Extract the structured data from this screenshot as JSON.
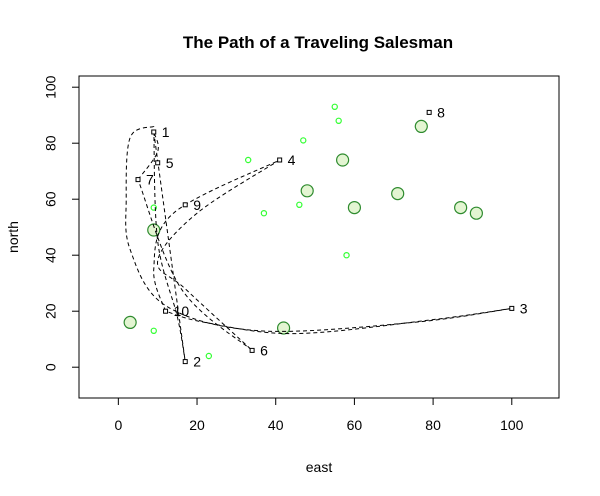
{
  "chart_data": {
    "type": "scatter",
    "title": "The Path of a Traveling Salesman",
    "xlabel": "east",
    "ylabel": "north",
    "xlim": [
      -10,
      112
    ],
    "ylim": [
      -11,
      104
    ],
    "xticks": [
      0,
      20,
      40,
      60,
      80,
      100
    ],
    "yticks": [
      0,
      20,
      40,
      60,
      80,
      100
    ],
    "grid": false,
    "colors": {
      "small_outline": "#33ff33",
      "big_outline": "#2e8b2e",
      "big_fill": "#e3f5d2",
      "path": "#000000"
    },
    "cities": [
      {
        "label": "1",
        "x": 9,
        "y": 84
      },
      {
        "label": "2",
        "x": 17,
        "y": 2
      },
      {
        "label": "3",
        "x": 100,
        "y": 21
      },
      {
        "label": "4",
        "x": 41,
        "y": 74
      },
      {
        "label": "5",
        "x": 10,
        "y": 73
      },
      {
        "label": "6",
        "x": 34,
        "y": 6
      },
      {
        "label": "7",
        "x": 5,
        "y": 67
      },
      {
        "label": "8",
        "x": 79,
        "y": 91
      },
      {
        "label": "9",
        "x": 17,
        "y": 58
      },
      {
        "label": "10",
        "x": 12,
        "y": 20
      }
    ],
    "small_points": [
      {
        "x": 9,
        "y": 57
      },
      {
        "x": 9,
        "y": 13
      },
      {
        "x": 23,
        "y": 4
      },
      {
        "x": 33,
        "y": 74
      },
      {
        "x": 37,
        "y": 55
      },
      {
        "x": 46,
        "y": 58
      },
      {
        "x": 47,
        "y": 81
      },
      {
        "x": 55,
        "y": 93
      },
      {
        "x": 56,
        "y": 88
      },
      {
        "x": 58,
        "y": 40
      }
    ],
    "big_points": [
      {
        "x": 3,
        "y": 16
      },
      {
        "x": 9,
        "y": 49
      },
      {
        "x": 42,
        "y": 14
      },
      {
        "x": 48,
        "y": 63
      },
      {
        "x": 57,
        "y": 74
      },
      {
        "x": 60,
        "y": 57
      },
      {
        "x": 71,
        "y": 62
      },
      {
        "x": 77,
        "y": 86
      },
      {
        "x": 87,
        "y": 57
      },
      {
        "x": 91,
        "y": 55
      }
    ],
    "path_segments": [
      [
        [
          9,
          84
        ],
        [
          17,
          2
        ]
      ],
      [
        [
          17,
          2
        ],
        [
          15,
          18
        ],
        [
          10,
          45
        ],
        [
          9,
          86
        ]
      ],
      [
        [
          9,
          86
        ],
        [
          3,
          82
        ],
        [
          2,
          60
        ],
        [
          3,
          42
        ],
        [
          12,
          22
        ],
        [
          36,
          13
        ],
        [
          75,
          16
        ],
        [
          100,
          21
        ]
      ],
      [
        [
          100,
          21
        ],
        [
          80,
          17
        ],
        [
          45,
          12
        ],
        [
          22,
          16
        ],
        [
          12,
          20
        ]
      ],
      [
        [
          12,
          20
        ],
        [
          9,
          35
        ],
        [
          14,
          55
        ],
        [
          41,
          74
        ]
      ],
      [
        [
          41,
          74
        ],
        [
          20,
          55
        ],
        [
          10,
          38
        ],
        [
          17,
          28
        ],
        [
          34,
          6
        ]
      ],
      [
        [
          34,
          6
        ],
        [
          16,
          28
        ],
        [
          5,
          67
        ]
      ],
      [
        [
          5,
          67
        ],
        [
          10,
          77
        ],
        [
          9,
          84
        ]
      ]
    ]
  }
}
